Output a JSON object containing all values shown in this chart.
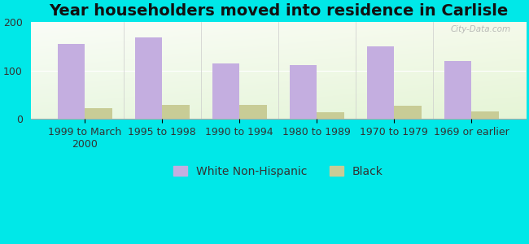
{
  "title": "Year householders moved into residence in Carlisle",
  "categories": [
    "1999 to March\n2000",
    "1995 to 1998",
    "1990 to 1994",
    "1980 to 1989",
    "1970 to 1979",
    "1969 or earlier"
  ],
  "white_values": [
    155,
    168,
    115,
    112,
    150,
    120
  ],
  "black_values": [
    22,
    28,
    28,
    13,
    27,
    15
  ],
  "white_color": "#c4aee0",
  "black_color": "#c8cc96",
  "background_color": "#00e8e8",
  "ylim": [
    0,
    200
  ],
  "yticks": [
    0,
    100,
    200
  ],
  "bar_width": 0.35,
  "title_fontsize": 14,
  "tick_fontsize": 9,
  "legend_fontsize": 10,
  "watermark_text": "City-Data.com",
  "legend_labels": [
    "White Non-Hispanic",
    "Black"
  ]
}
